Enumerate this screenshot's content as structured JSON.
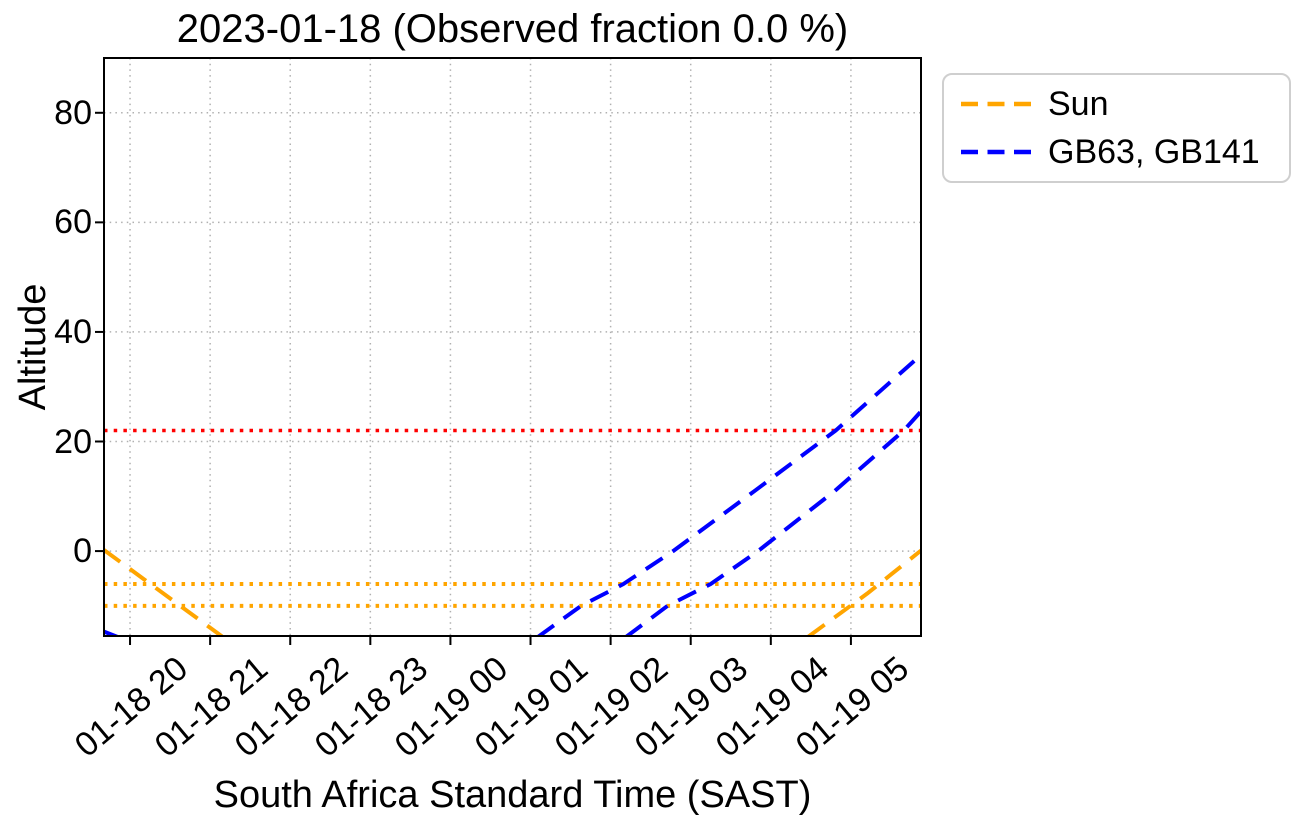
{
  "chart_data": {
    "type": "line",
    "title": "2023-01-18 (Observed fraction 0.0 %)",
    "date": "2023-01-18",
    "observed_fraction_percent": 0.0,
    "xlabel": "South Africa Standard Time (SAST)",
    "ylabel": "Altitude",
    "x_axis": {
      "unit": "hours since 2023-01-18 00:00 SAST",
      "lim": [
        19.675,
        29.875
      ],
      "ticks": [
        {
          "value": 20,
          "label": "01-18 20"
        },
        {
          "value": 21,
          "label": "01-18 21"
        },
        {
          "value": 22,
          "label": "01-18 22"
        },
        {
          "value": 23,
          "label": "01-18 23"
        },
        {
          "value": 24,
          "label": "01-19 00"
        },
        {
          "value": 25,
          "label": "01-19 01"
        },
        {
          "value": 26,
          "label": "01-19 02"
        },
        {
          "value": 27,
          "label": "01-19 03"
        },
        {
          "value": 28,
          "label": "01-19 04"
        },
        {
          "value": 29,
          "label": "01-19 05"
        }
      ],
      "tick_rotation_deg": 40
    },
    "y_axis": {
      "lim": [
        -15.5,
        90
      ],
      "ticks": [
        0,
        20,
        40,
        60,
        80
      ]
    },
    "grid": {
      "visible": true,
      "style": "dotted",
      "color": "#b0b0b0"
    },
    "horizontal_lines": [
      {
        "altitude": 22,
        "color": "#ff0000",
        "style": "dotted"
      },
      {
        "altitude": -6,
        "color": "#ffa500",
        "style": "dotted"
      },
      {
        "altitude": -10,
        "color": "#ffa500",
        "style": "dotted"
      }
    ],
    "series": [
      {
        "name": "Sun",
        "color": "#ffa500",
        "style": "dashed",
        "segments": [
          [
            [
              19.675,
              0.2
            ],
            [
              21.15,
              -15.6
            ]
          ],
          [
            [
              28.47,
              -15.6
            ],
            [
              29.2,
              -7.8
            ],
            [
              29.875,
              0.1
            ]
          ]
        ]
      },
      {
        "name": "GB63, GB141",
        "color": "#0000ff",
        "style": "dashed",
        "segments": [
          [
            [
              19.675,
              -14.7
            ],
            [
              19.85,
              -15.7
            ]
          ],
          [
            [
              25.09,
              -15.7
            ],
            [
              25.63,
              -10.0
            ],
            [
              26.16,
              -6.0
            ],
            [
              26.78,
              0.0
            ],
            [
              27.8,
              11.0
            ],
            [
              28.81,
              22.0
            ],
            [
              29.875,
              35.8
            ]
          ],
          [
            [
              26.19,
              -15.7
            ],
            [
              26.71,
              -10.0
            ],
            [
              27.25,
              -6.0
            ],
            [
              27.84,
              0.0
            ],
            [
              28.8,
              11.0
            ],
            [
              29.66,
              22.0
            ],
            [
              29.875,
              25.5
            ]
          ]
        ]
      }
    ],
    "legend": {
      "position": "outside-upper-right",
      "entries": [
        {
          "label": "Sun",
          "color": "#ffa500",
          "style": "dashed"
        },
        {
          "label": "GB63, GB141",
          "color": "#0000ff",
          "style": "dashed"
        }
      ]
    }
  }
}
